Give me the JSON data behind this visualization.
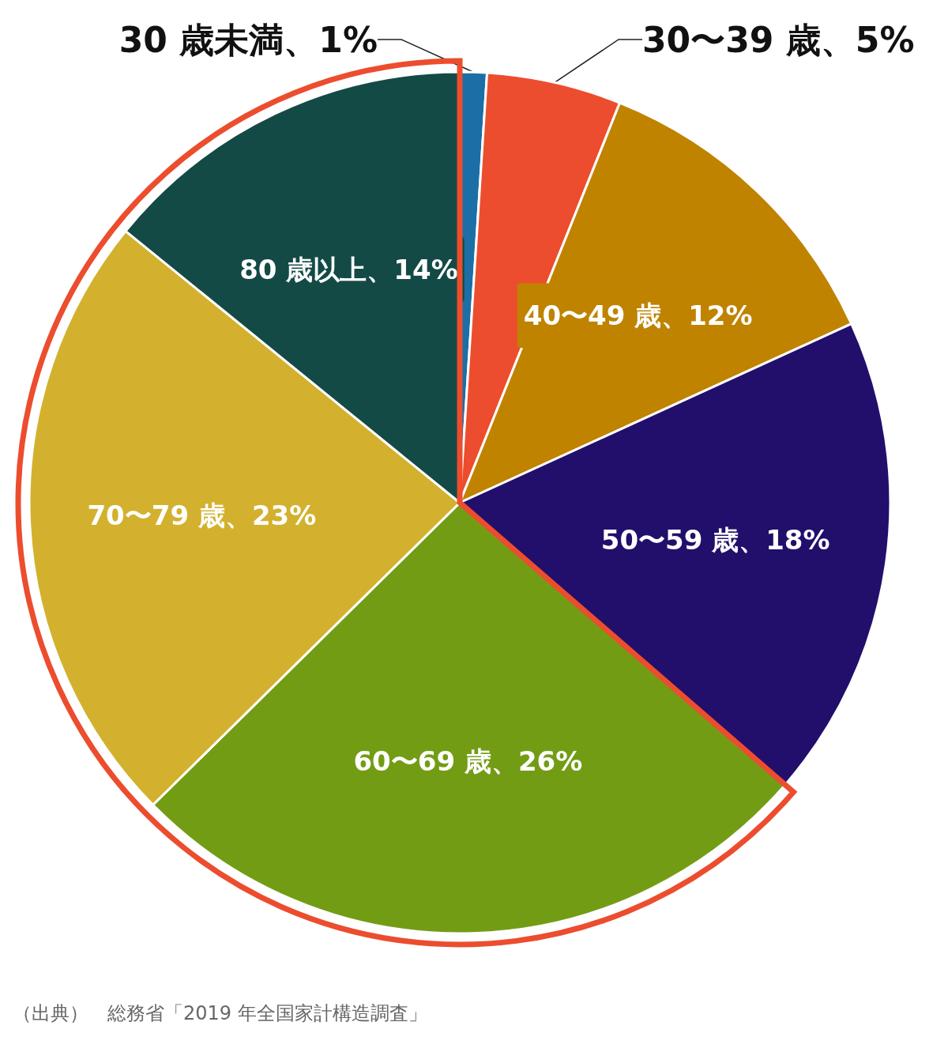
{
  "chart_data": {
    "type": "pie",
    "categories": [
      "30 歳未満",
      "30〜39 歳",
      "40〜49 歳",
      "50〜59 歳",
      "60〜69 歳",
      "70〜79 歳",
      "80 歳以上"
    ],
    "values": [
      1,
      5,
      12,
      18,
      26,
      23,
      14
    ],
    "value_labels": [
      "1%",
      "5%",
      "12%",
      "18%",
      "26%",
      "23%",
      "14%"
    ],
    "colors": [
      "#1b6fa6",
      "#ec4d2e",
      "#bf8300",
      "#220f6b",
      "#739c15",
      "#d3b12e",
      "#134a45"
    ],
    "legend": false,
    "annotations": [
      "（出典）　総務省「2019 年全国家計構造調査」"
    ]
  }
}
